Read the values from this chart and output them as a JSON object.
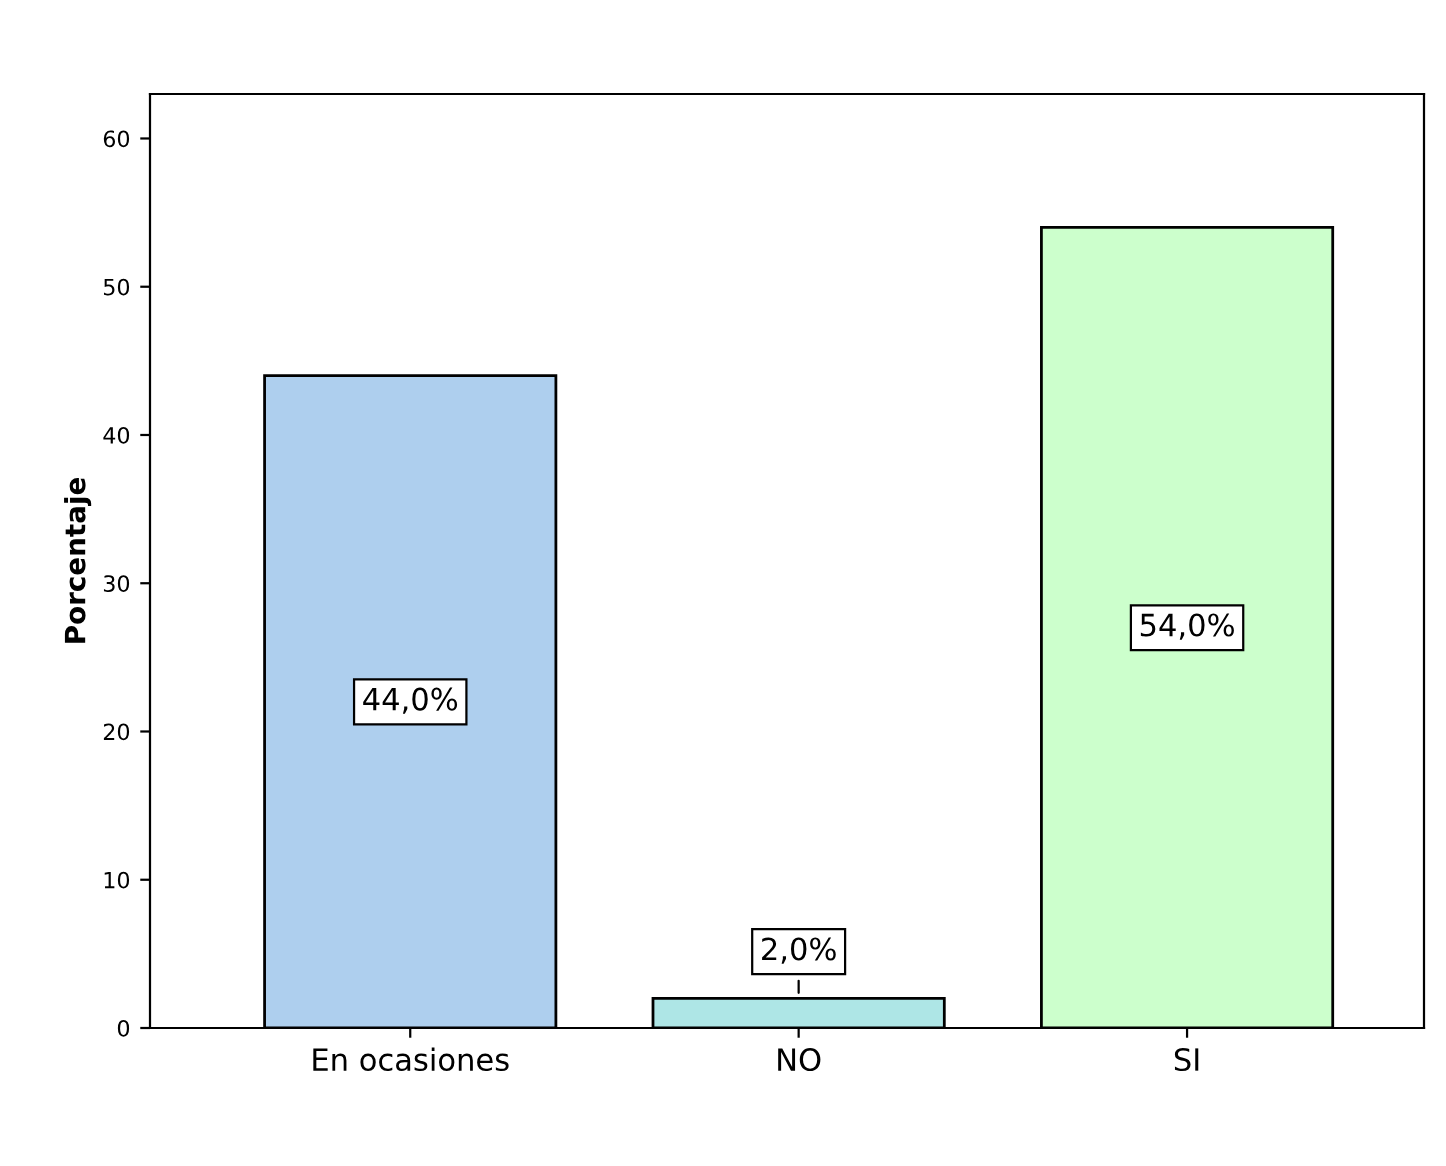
{
  "chart_data": {
    "type": "bar",
    "ylabel": "Porcentaje",
    "categories": [
      "En ocasiones",
      "NO",
      "SI"
    ],
    "values": [
      44,
      2,
      54
    ],
    "colors": [
      "#aecfee",
      "#aee6e6",
      "#ccffcc"
    ],
    "value_labels": [
      "44,0%",
      "2,0%",
      "54,0%"
    ],
    "ylim": [
      0,
      63
    ],
    "yticks": [
      0,
      10,
      20,
      30,
      40,
      50,
      60
    ],
    "grid": false,
    "legend": false
  }
}
